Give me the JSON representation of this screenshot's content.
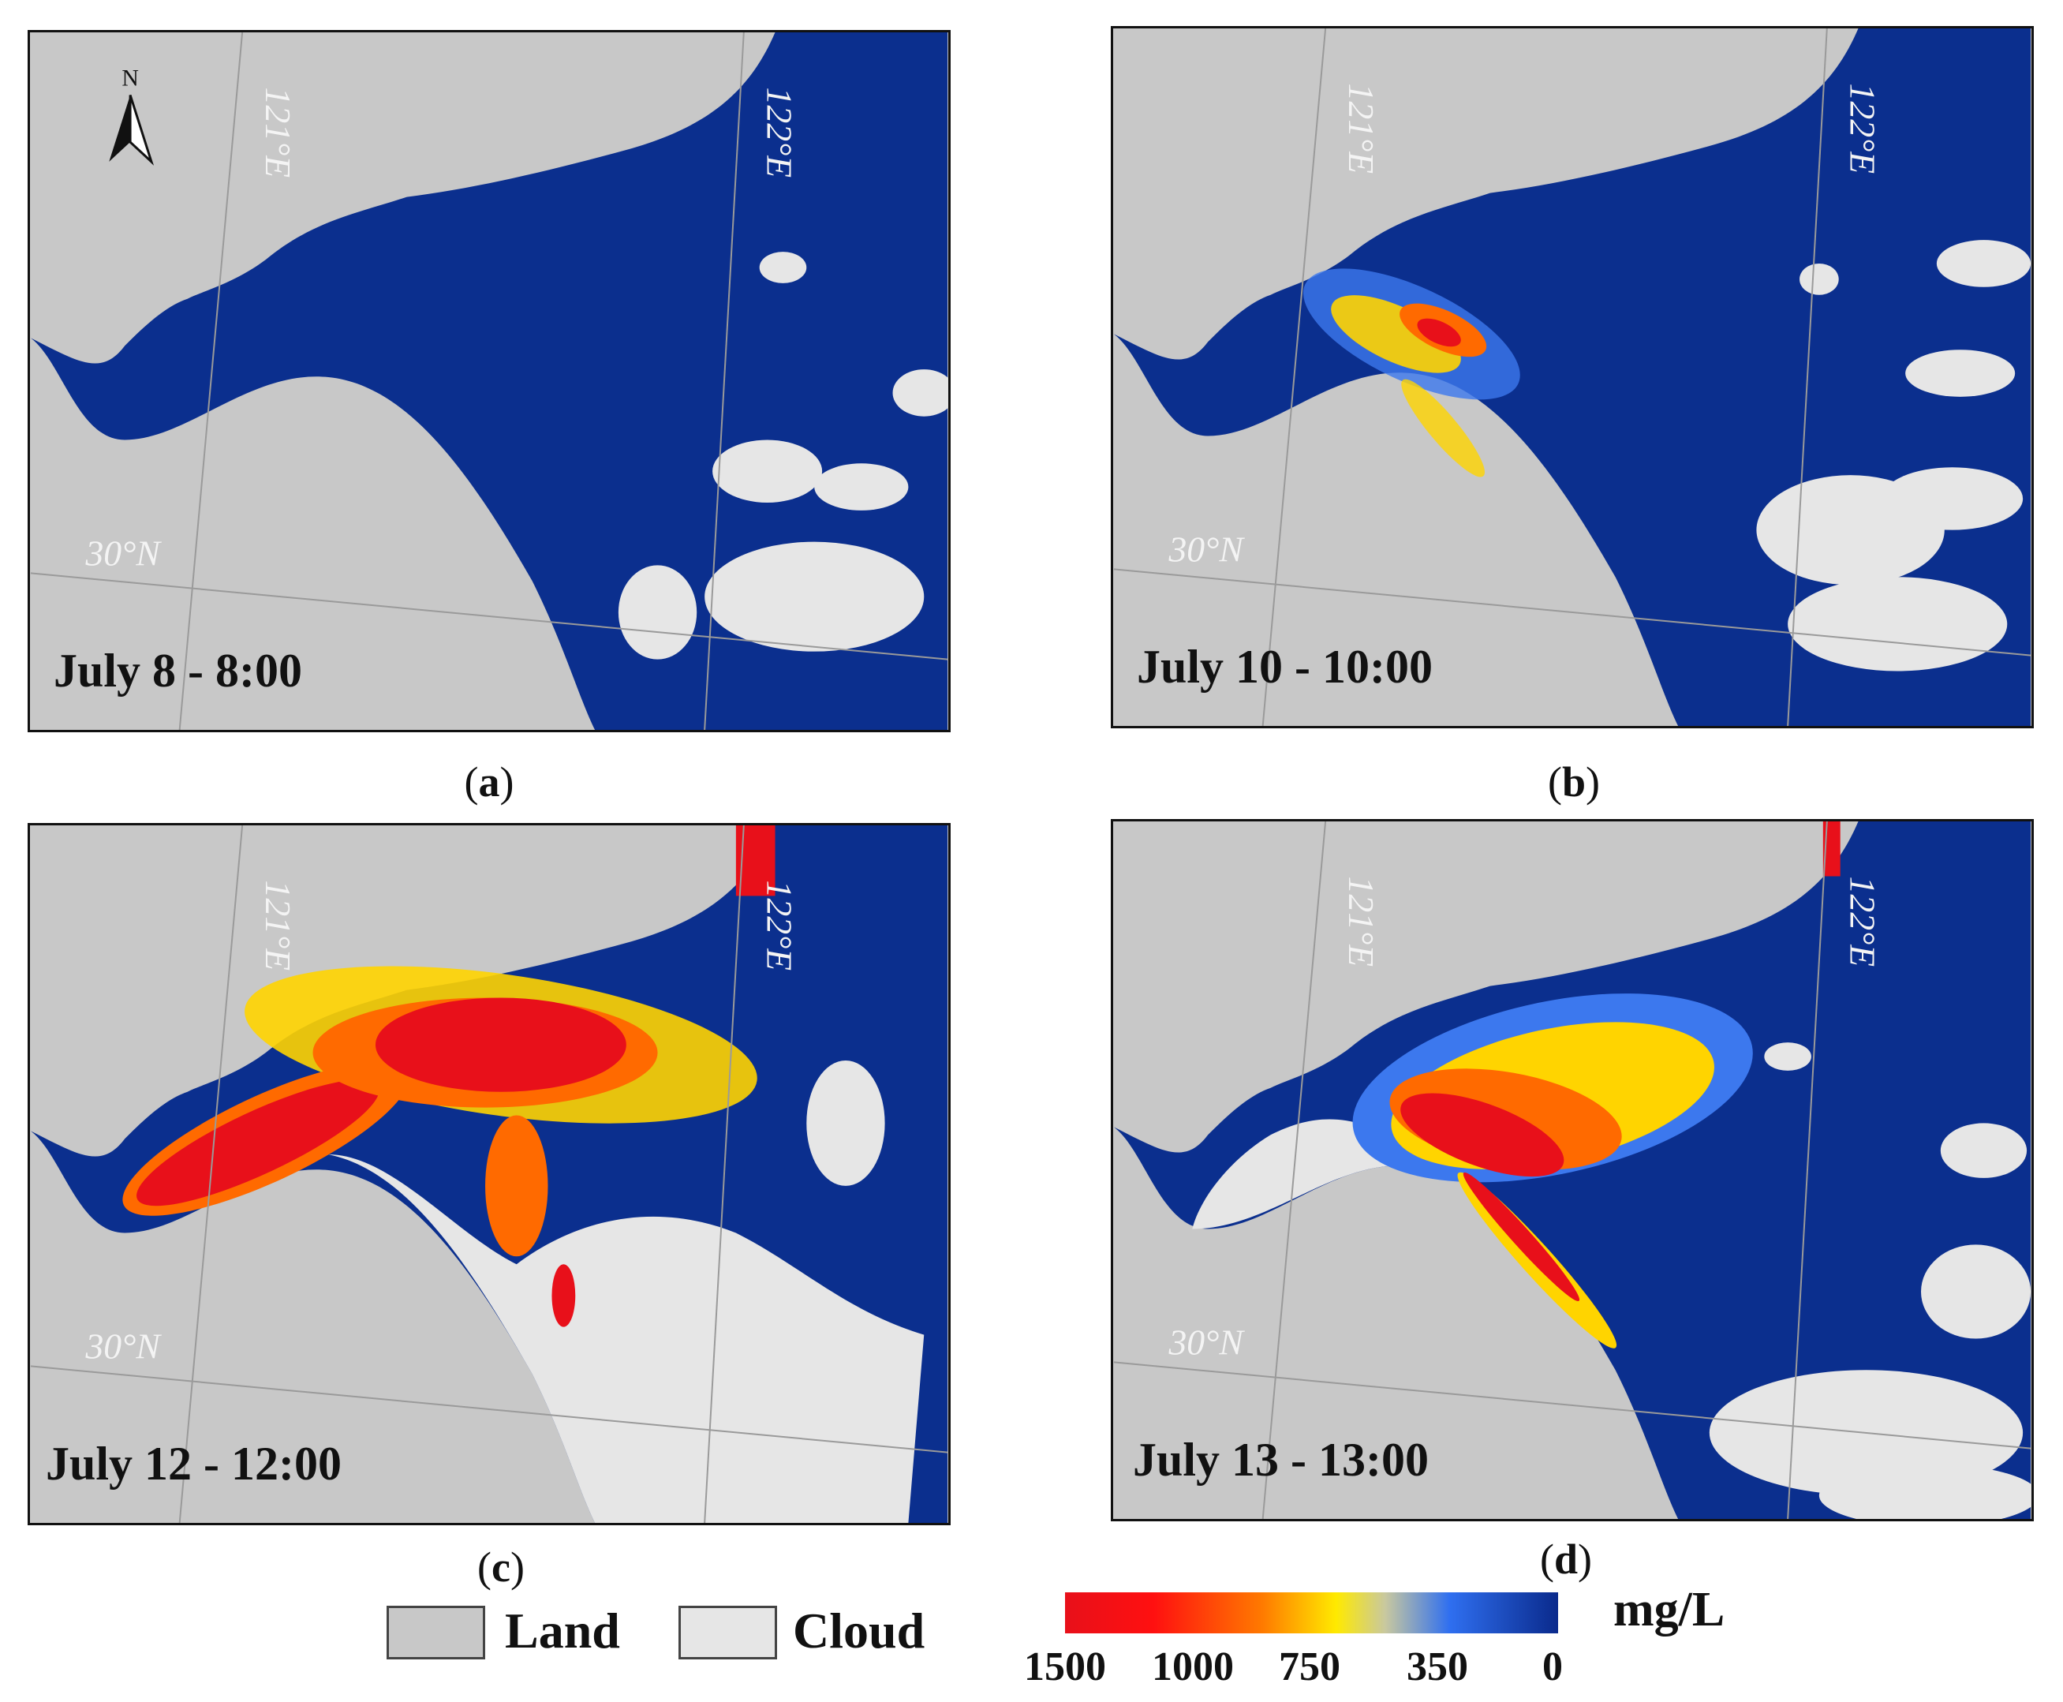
{
  "panels": [
    {
      "date_label": "July 8 - 8:00",
      "caption_letter": "a",
      "plume_level": 0
    },
    {
      "date_label": "July 10 - 10:00",
      "caption_letter": "b",
      "plume_level": 1
    },
    {
      "date_label": "July 12 - 12:00",
      "caption_letter": "c",
      "plume_level": 3
    },
    {
      "date_label": "July 13 - 13:00",
      "caption_letter": "d",
      "plume_level": 2
    }
  ],
  "grid_labels": {
    "lon1": "121°E",
    "lon2": "122°E",
    "lat": "30°N"
  },
  "north_arrow": {
    "label": "N",
    "icon": "north-arrow-icon"
  },
  "legend": {
    "land_label": "Land",
    "cloud_label": "Cloud",
    "land_color": "#c8c8c8",
    "cloud_color": "#e6e6e6"
  },
  "colorbar": {
    "unit": "mg/L",
    "ticks": [
      "1500",
      "1000",
      "750",
      "350",
      "0"
    ],
    "colors": [
      "#ff1010",
      "#ff7a00",
      "#ffea00",
      "#2f6ff0",
      "#0a2a8c"
    ]
  }
}
